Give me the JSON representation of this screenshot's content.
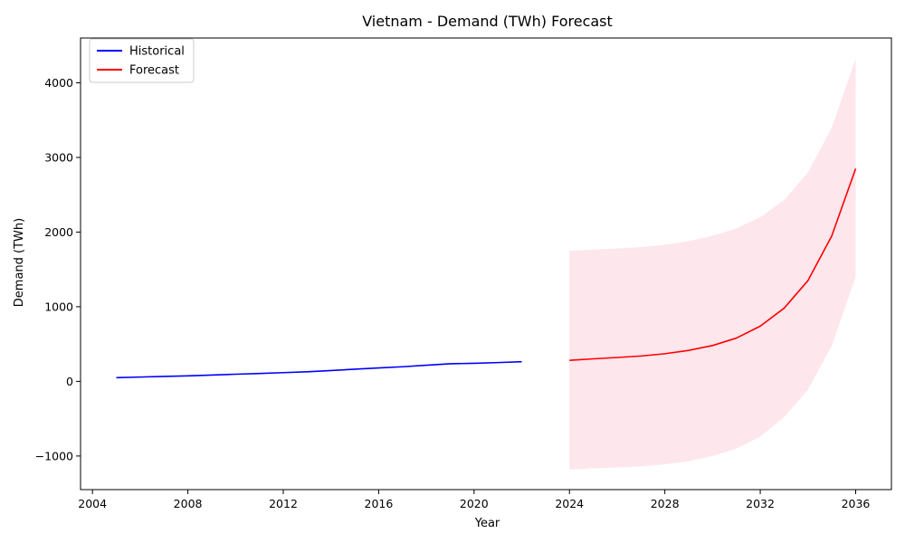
{
  "chart_data": {
    "type": "line",
    "title": "Vietnam - Demand (TWh) Forecast",
    "xlabel": "Year",
    "ylabel": "Demand (TWh)",
    "xlim": [
      2003.5,
      2037.5
    ],
    "ylim": [
      -1450,
      4600
    ],
    "xticks": [
      2004,
      2008,
      2012,
      2016,
      2020,
      2024,
      2028,
      2032,
      2036
    ],
    "yticks": [
      -1000,
      0,
      1000,
      2000,
      3000,
      4000
    ],
    "ytick_labels": [
      "−1000",
      "0",
      "1000",
      "2000",
      "3000",
      "4000"
    ],
    "legend_position": "upper-left",
    "grid": false,
    "series": [
      {
        "name": "Historical",
        "color": "#0000ff",
        "x": [
          2005,
          2006,
          2007,
          2008,
          2009,
          2010,
          2011,
          2012,
          2013,
          2014,
          2015,
          2016,
          2017,
          2018,
          2019,
          2020,
          2021,
          2022
        ],
        "y": [
          50,
          58,
          66,
          74,
          84,
          96,
          106,
          117,
          128,
          145,
          163,
          180,
          196,
          216,
          236,
          242,
          252,
          263
        ]
      },
      {
        "name": "Forecast",
        "color": "#ff0000",
        "x": [
          2024,
          2025,
          2026,
          2027,
          2028,
          2029,
          2030,
          2031,
          2032,
          2033,
          2034,
          2035,
          2036
        ],
        "y": [
          282,
          302,
          320,
          340,
          370,
          415,
          480,
          580,
          740,
          980,
          1350,
          1950,
          2850
        ],
        "band_color": "#fde6ec",
        "lower": [
          -1180,
          -1165,
          -1155,
          -1140,
          -1110,
          -1070,
          -1000,
          -900,
          -740,
          -480,
          -110,
          480,
          1400
        ],
        "upper": [
          1750,
          1765,
          1780,
          1800,
          1830,
          1880,
          1950,
          2050,
          2200,
          2430,
          2800,
          3400,
          4320
        ]
      }
    ]
  }
}
